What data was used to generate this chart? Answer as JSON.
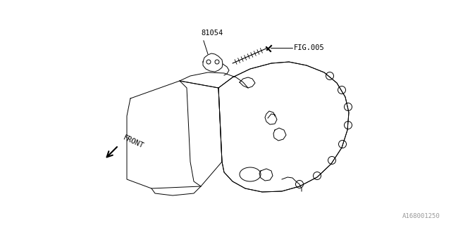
{
  "bg_color": "#ffffff",
  "line_color": "#000000",
  "text_color": "#000000",
  "part_number": "81054",
  "fig_ref": "FIG.005",
  "front_label": "FRONT",
  "diagram_id": "A168001250"
}
